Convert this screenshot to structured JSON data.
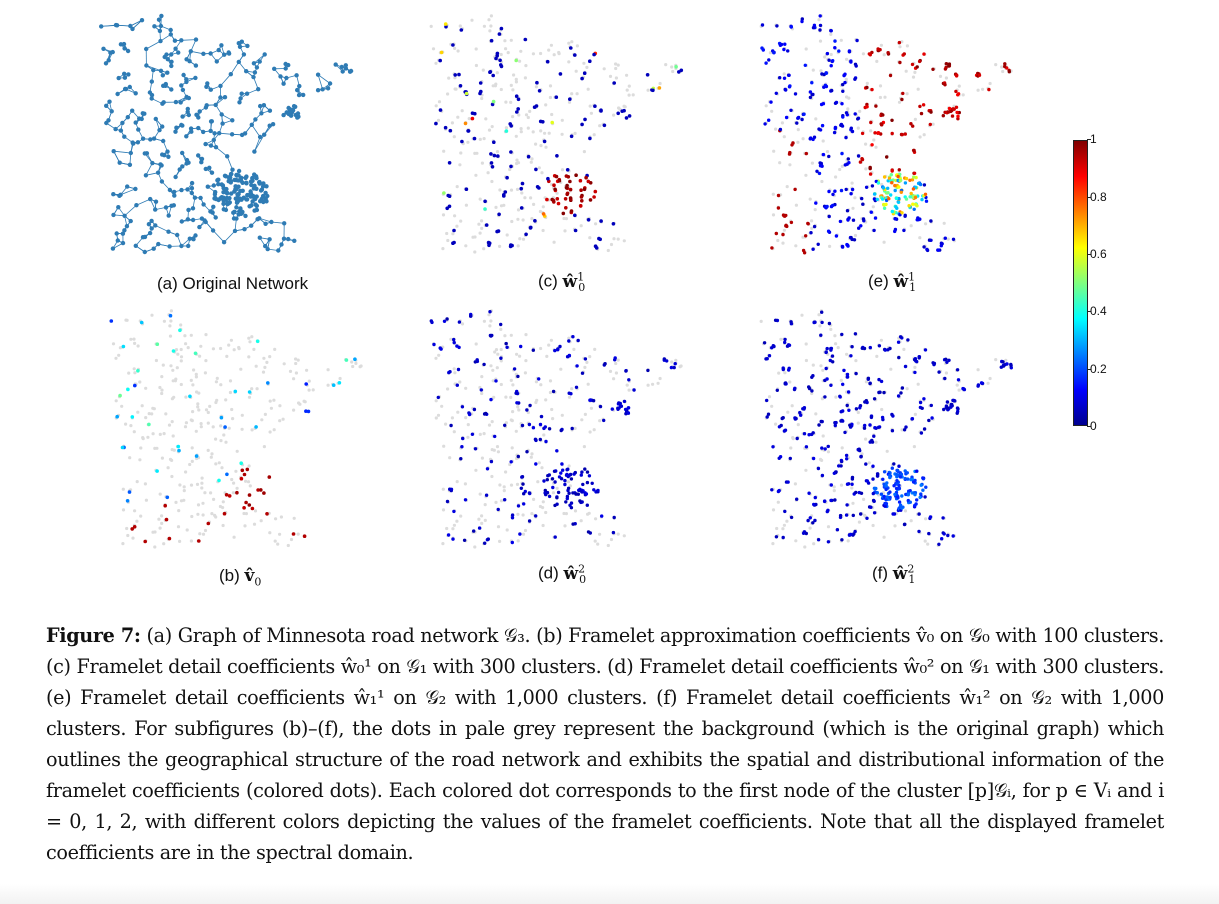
{
  "figure": {
    "panels": [
      {
        "id": "a",
        "label_prefix": "(a) ",
        "label_text": "Original Network",
        "math_base": "",
        "math_sup": "",
        "math_sub": "",
        "type": "network"
      },
      {
        "id": "b",
        "label_prefix": "(b) ",
        "label_text": "",
        "math_base": "v̂",
        "math_sup": "",
        "math_sub": "0",
        "type": "coeff_b"
      },
      {
        "id": "c",
        "label_prefix": "(c) ",
        "label_text": "",
        "math_base": "ŵ",
        "math_sup": "1",
        "math_sub": "0",
        "type": "coeff_c"
      },
      {
        "id": "d",
        "label_prefix": "(d) ",
        "label_text": "",
        "math_base": "ŵ",
        "math_sup": "2",
        "math_sub": "0",
        "type": "coeff_d"
      },
      {
        "id": "e",
        "label_prefix": "(e) ",
        "label_text": "",
        "math_base": "ŵ",
        "math_sup": "1",
        "math_sub": "1",
        "type": "coeff_e"
      },
      {
        "id": "f",
        "label_prefix": "(f) ",
        "label_text": "",
        "math_base": "ŵ",
        "math_sup": "2",
        "math_sub": "1",
        "type": "coeff_f"
      }
    ],
    "colorbar": {
      "ticks": [
        "1",
        "0.8",
        "0.6",
        "0.4",
        "0.2",
        "0"
      ],
      "colormap": [
        "#00008f",
        "#0000ff",
        "#00ffff",
        "#ffff00",
        "#ff0000",
        "#800000"
      ]
    },
    "colors": {
      "network": "#2e7bb4",
      "background_dots": "#dcdcdc",
      "edges": "#c8c8c8"
    },
    "caption": {
      "label": "Figure 7:",
      "text": "(a) Graph of Minnesota road network 𝒢₃. (b) Framelet approximation coefficients v̂₀ on 𝒢₀ with 100 clusters. (c) Framelet detail coefficients ŵ₀¹ on 𝒢₁ with 300 clusters. (d) Framelet detail coefficients ŵ₀² on 𝒢₁ with 300 clusters. (e) Framelet detail coefficients ŵ₁¹ on 𝒢₂ with 1,000 clusters. (f) Framelet detail coefficients ŵ₁² on 𝒢₂ with 1,000 clusters. For subfigures (b)–(f), the dots in pale grey represent the background (which is the original graph) which outlines the geographical structure of the road network and exhibits the spatial and distributional information of the framelet coefficients (colored dots). Each colored dot corresponds to the first node of the cluster [p]𝒢ᵢ, for p ∈ Vᵢ and i = 0, 1, 2, with different colors depicting the values of the framelet coefficients. Note that all the displayed framelet coefficients are in the spectral domain."
    }
  }
}
